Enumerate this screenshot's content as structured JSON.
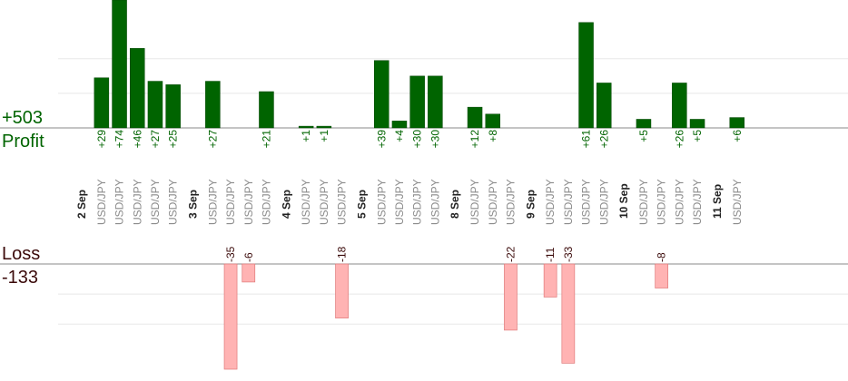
{
  "summary": {
    "profit_total": "+503",
    "profit_label": "Profit",
    "loss_label": "Loss",
    "loss_total": "-133"
  },
  "colors": {
    "profit_bar": "#006400",
    "profit_bar_edge": "#004400",
    "profit_text": "#006400",
    "loss_bar": "#ffb3b3",
    "loss_bar_edge": "#e07a7a",
    "loss_text": "#3b0a0a",
    "symbol_text": "#8a8a8a",
    "date_text": "#222222",
    "axis": "#888888",
    "grid": "#e8e8e8"
  },
  "chart_data": {
    "type": "bar",
    "profit_ylim": [
      0,
      74
    ],
    "loss_ylim": [
      0,
      35
    ],
    "groups": [
      {
        "date": "2 Sep",
        "trades": [
          {
            "symbol": "USD/JPY",
            "profit": 29,
            "label": "+29"
          },
          {
            "symbol": "USD/JPY",
            "profit": 74,
            "label": "+74"
          },
          {
            "symbol": "USD/JPY",
            "profit": 46,
            "label": "+46"
          },
          {
            "symbol": "USD/JPY",
            "profit": 27,
            "label": "+27"
          },
          {
            "symbol": "USD/JPY",
            "profit": 25,
            "label": "+25"
          }
        ]
      },
      {
        "date": "3 Sep",
        "trades": [
          {
            "symbol": "USD/JPY",
            "profit": 27,
            "label": "+27"
          },
          {
            "symbol": "USD/JPY",
            "profit": -35,
            "label": "-35"
          },
          {
            "symbol": "USD/JPY",
            "profit": -6,
            "label": "-6"
          },
          {
            "symbol": "USD/JPY",
            "profit": 21,
            "label": "+21"
          }
        ]
      },
      {
        "date": "4 Sep",
        "trades": [
          {
            "symbol": "USD/JPY",
            "profit": 1,
            "label": "+1"
          },
          {
            "symbol": "USD/JPY",
            "profit": 1,
            "label": "+1"
          },
          {
            "symbol": "USD/JPY",
            "profit": -18,
            "label": "-18"
          }
        ]
      },
      {
        "date": "5 Sep",
        "trades": [
          {
            "symbol": "USD/JPY",
            "profit": 39,
            "label": "+39"
          },
          {
            "symbol": "USD/JPY",
            "profit": 4,
            "label": "+4"
          },
          {
            "symbol": "USD/JPY",
            "profit": 30,
            "label": "+30"
          },
          {
            "symbol": "USD/JPY",
            "profit": 30,
            "label": "+30"
          }
        ]
      },
      {
        "date": "8 Sep",
        "trades": [
          {
            "symbol": "USD/JPY",
            "profit": 12,
            "label": "+12"
          },
          {
            "symbol": "USD/JPY",
            "profit": 8,
            "label": "+8"
          },
          {
            "symbol": "USD/JPY",
            "profit": -22,
            "label": "-22"
          }
        ]
      },
      {
        "date": "9 Sep",
        "trades": [
          {
            "symbol": "USD/JPY",
            "profit": -11,
            "label": "-11"
          },
          {
            "symbol": "USD/JPY",
            "profit": -33,
            "label": "-33"
          },
          {
            "symbol": "USD/JPY",
            "profit": 61,
            "label": "+61"
          },
          {
            "symbol": "USD/JPY",
            "profit": 26,
            "label": "+26"
          }
        ]
      },
      {
        "date": "10 Sep",
        "trades": [
          {
            "symbol": "USD/JPY",
            "profit": 5,
            "label": "+5"
          },
          {
            "symbol": "USD/JPY",
            "profit": -8,
            "label": "-8"
          },
          {
            "symbol": "USD/JPY",
            "profit": 26,
            "label": "+26"
          },
          {
            "symbol": "USD/JPY",
            "profit": 5,
            "label": "+5"
          }
        ]
      },
      {
        "date": "11 Sep",
        "trades": [
          {
            "symbol": "USD/JPY",
            "profit": 6,
            "label": "+6"
          }
        ]
      }
    ]
  }
}
